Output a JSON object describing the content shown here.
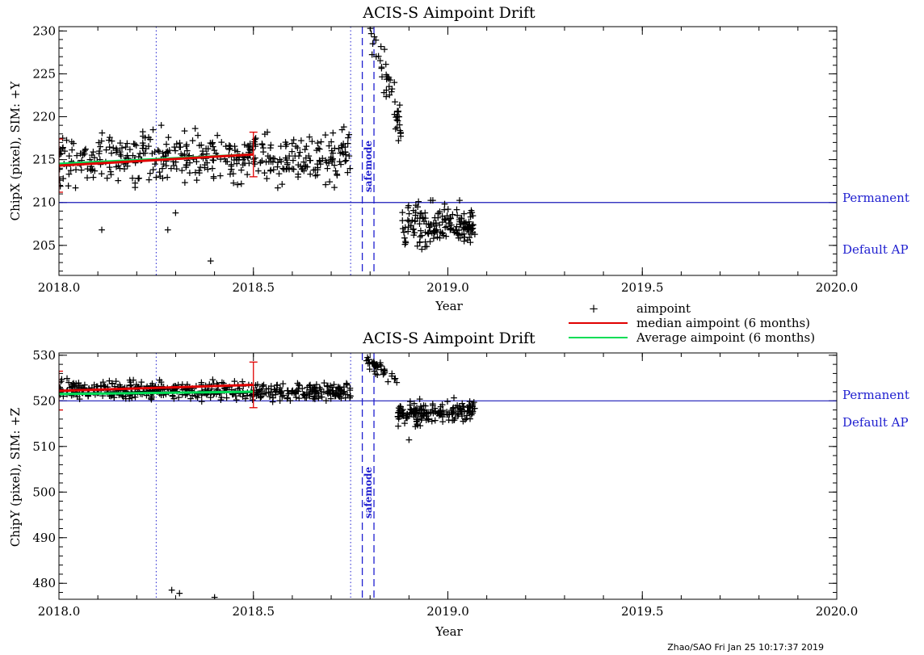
{
  "footer": "Zhao/SAO Fri Jan 25 10:17:37 2019",
  "legend": {
    "aimpoint": "aimpoint",
    "median": "median aimpoint (6 months)",
    "average": "Average aimpoint (6 months)"
  },
  "colors": {
    "points": "#000000",
    "median": "#e00000",
    "average": "#00dd55",
    "reference": "#1a1ab8",
    "markers": "#2020d0"
  },
  "chart_data": [
    {
      "type": "scatter",
      "title": "ACIS-S Aimpoint Drift",
      "xlabel": "Year",
      "ylabel": "ChipX (pixel), SIM: +Y",
      "xlim": [
        2018.0,
        2020.0
      ],
      "ylim": [
        201.5,
        230.5
      ],
      "xticks": [
        "2018.0",
        "2018.5",
        "2019.0",
        "2019.5",
        "2020.0"
      ],
      "yticks": [
        "205",
        "210",
        "215",
        "220",
        "225",
        "230"
      ],
      "reference_line": {
        "y": 210,
        "label_top": "Permanent",
        "label_bottom": "Default AP"
      },
      "dotted_lines_x": [
        2018.25,
        2018.75
      ],
      "dashed_lines_x": [
        2018.78,
        2018.81
      ],
      "event_label": "safemode",
      "median_line": {
        "x": [
          2018.0,
          2018.5
        ],
        "y": [
          214.3,
          215.6
        ],
        "err_low": [
          211.2,
          213.0
        ],
        "err_high": [
          217.4,
          218.2
        ]
      },
      "average_line": {
        "x": [
          2018.0,
          2018.5
        ],
        "y": [
          214.5,
          215.6
        ]
      },
      "series": [
        {
          "name": "aimpoint",
          "segments": [
            {
              "x0": 2018.0,
              "x1": 2018.75,
              "mean_start": 215.0,
              "mean_end": 215.5,
              "spread": 3.8
            },
            {
              "x0": 2018.8,
              "x1": 2018.88,
              "mean_start": 230.0,
              "mean_end": 219.0,
              "spread": 3.5
            },
            {
              "x0": 2018.88,
              "x1": 2019.07,
              "mean_start": 207.0,
              "mean_end": 207.5,
              "spread": 3.2
            }
          ],
          "outliers": [
            [
              2018.39,
              203.2
            ],
            [
              2018.28,
              206.8
            ],
            [
              2018.11,
              206.8
            ],
            [
              2018.3,
              208.8
            ]
          ]
        }
      ]
    },
    {
      "type": "scatter",
      "title": "ACIS-S Aimpoint Drift",
      "xlabel": "Year",
      "ylabel": "ChipY (pixel), SIM: +Z",
      "xlim": [
        2018.0,
        2020.0
      ],
      "ylim": [
        476.5,
        530.5
      ],
      "xticks": [
        "2018.0",
        "2018.5",
        "2019.0",
        "2019.5",
        "2020.0"
      ],
      "yticks": [
        "480",
        "490",
        "500",
        "510",
        "520",
        "530"
      ],
      "reference_line": {
        "y": 520,
        "label_top": "Permanent",
        "label_bottom": "Default AP"
      },
      "dotted_lines_x": [
        2018.25,
        2018.75
      ],
      "dashed_lines_x": [
        2018.78,
        2018.81
      ],
      "event_label": "safemode",
      "median_line": {
        "x": [
          2018.0,
          2018.5
        ],
        "y": [
          522.2,
          523.5
        ],
        "err_low": [
          518.0,
          518.5
        ],
        "err_high": [
          526.5,
          528.5
        ]
      },
      "average_line": {
        "x": [
          2018.0,
          2018.5
        ],
        "y": [
          521.5,
          522.0
        ]
      },
      "series": [
        {
          "name": "aimpoint",
          "segments": [
            {
              "x0": 2018.0,
              "x1": 2018.75,
              "mean_start": 522.5,
              "mean_end": 522.0,
              "spread": 2.6
            },
            {
              "x0": 2018.79,
              "x1": 2018.87,
              "mean_start": 529.0,
              "mean_end": 524.0,
              "spread": 2.0
            },
            {
              "x0": 2018.87,
              "x1": 2019.07,
              "mean_start": 517.0,
              "mean_end": 518.0,
              "spread": 2.8
            }
          ],
          "outliers": [
            [
              2018.29,
              478.5
            ],
            [
              2018.31,
              477.8
            ],
            [
              2018.4,
              476.9
            ],
            [
              2018.9,
              511.5
            ]
          ]
        }
      ]
    }
  ]
}
